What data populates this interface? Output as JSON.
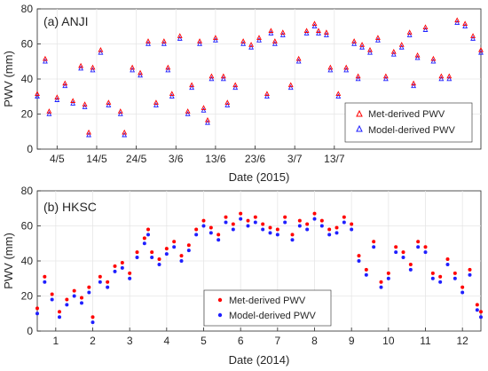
{
  "colors": {
    "met": "#ff0000",
    "model": "#1f1fff",
    "axis": "#262626",
    "grid": "#e6e6e6"
  },
  "chart_data": [
    {
      "type": "scatter",
      "panel_label": "(a) ANJI",
      "xlabel": "Date (2015)",
      "ylabel": "PWV (mm)",
      "ylim": [
        0,
        80
      ],
      "yticks": [
        0,
        20,
        40,
        60,
        80
      ],
      "xlim": [
        0,
        112
      ],
      "xtick_values": [
        5,
        15,
        25,
        35,
        45,
        55,
        65,
        75
      ],
      "xtick_labels": [
        "4/5",
        "14/5",
        "24/5",
        "3/6",
        "13/6",
        "23/6",
        "3/7",
        "13/7"
      ],
      "grid": true,
      "legend_placement": "bottom-right",
      "marker": "triangle",
      "series": [
        {
          "name": "Met-derived PWV",
          "color_key": "met",
          "offset": 1.5
        },
        {
          "name": "Model-derived PWV",
          "color_key": "model",
          "offset": 0
        }
      ],
      "x": [
        0,
        2,
        3,
        5,
        7,
        9,
        11,
        12,
        13,
        14,
        16,
        18,
        21,
        22,
        24,
        26,
        28,
        30,
        32,
        33,
        34,
        36,
        38,
        39,
        41,
        42,
        43,
        44,
        45,
        47,
        48,
        50,
        52,
        54,
        56,
        58,
        59,
        60,
        62,
        64,
        66,
        68,
        70,
        71,
        73,
        74,
        76,
        78,
        80,
        81,
        82,
        84,
        86,
        88,
        90,
        92,
        94,
        95,
        96,
        98,
        100,
        102,
        104,
        106,
        108,
        110,
        112
      ],
      "y": [
        30,
        50,
        20,
        28,
        36,
        26,
        46,
        24,
        8,
        45,
        55,
        25,
        20,
        8,
        45,
        42,
        60,
        25,
        60,
        45,
        30,
        63,
        20,
        35,
        60,
        22,
        15,
        40,
        62,
        40,
        25,
        35,
        60,
        58,
        62,
        30,
        66,
        60,
        65,
        35,
        50,
        66,
        70,
        66,
        65,
        45,
        30,
        45,
        60,
        40,
        58,
        55,
        62,
        40,
        54,
        58,
        65,
        36,
        52,
        68,
        50,
        40,
        40,
        72,
        70,
        63,
        55
      ]
    },
    {
      "type": "scatter",
      "panel_label": "(b) HKSC",
      "xlabel": "Date (2014)",
      "ylabel": "PWV (mm)",
      "ylim": [
        0,
        80
      ],
      "yticks": [
        0,
        20,
        40,
        60,
        80
      ],
      "xlim": [
        0.5,
        12.5
      ],
      "xtick_values": [
        1,
        2,
        3,
        4,
        5,
        6,
        7,
        8,
        9,
        10,
        11,
        12
      ],
      "xtick_labels": [
        "1",
        "2",
        "3",
        "4",
        "5",
        "6",
        "7",
        "8",
        "9",
        "10",
        "11",
        "12"
      ],
      "grid": true,
      "legend_placement": "bottom-left",
      "marker": "circle",
      "series": [
        {
          "name": "Met-derived PWV",
          "color_key": "met",
          "offset": 3
        },
        {
          "name": "Model-derived PWV",
          "color_key": "model",
          "offset": 0
        }
      ],
      "x": [
        0.5,
        0.7,
        0.9,
        1.1,
        1.3,
        1.5,
        1.7,
        1.9,
        2.0,
        2.2,
        2.4,
        2.6,
        2.8,
        3.0,
        3.2,
        3.4,
        3.5,
        3.6,
        3.8,
        4.0,
        4.2,
        4.4,
        4.6,
        4.8,
        5.0,
        5.2,
        5.4,
        5.6,
        5.8,
        6.0,
        6.2,
        6.4,
        6.6,
        6.8,
        7.0,
        7.2,
        7.4,
        7.6,
        7.8,
        8.0,
        8.2,
        8.4,
        8.6,
        8.8,
        9.0,
        9.2,
        9.4,
        9.6,
        9.8,
        10.0,
        10.2,
        10.4,
        10.6,
        10.8,
        11.0,
        11.2,
        11.4,
        11.6,
        11.8,
        12.0,
        12.2,
        12.4,
        12.5
      ],
      "y": [
        10,
        28,
        18,
        8,
        15,
        20,
        16,
        22,
        5,
        28,
        25,
        34,
        36,
        30,
        42,
        50,
        55,
        42,
        38,
        44,
        48,
        40,
        46,
        55,
        60,
        56,
        52,
        62,
        58,
        64,
        60,
        62,
        58,
        56,
        55,
        62,
        52,
        60,
        58,
        64,
        60,
        55,
        56,
        62,
        58,
        40,
        32,
        48,
        25,
        30,
        45,
        42,
        35,
        48,
        45,
        30,
        28,
        38,
        30,
        22,
        32,
        12,
        8
      ]
    }
  ]
}
